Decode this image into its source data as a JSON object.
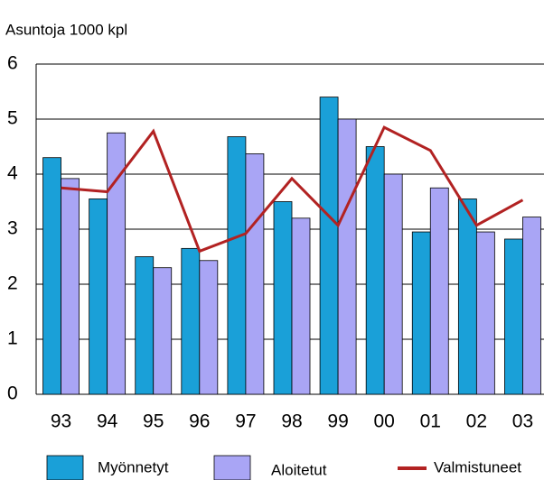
{
  "chart_data": {
    "type": "bar_line",
    "title": "Asuntoja 1000 kpl",
    "categories": [
      "93",
      "94",
      "95",
      "96",
      "97",
      "98",
      "99",
      "00",
      "01",
      "02",
      "03"
    ],
    "series": [
      {
        "name": "Myönnetyt",
        "type": "bar",
        "color": "#1aa0d8",
        "values": [
          4.3,
          3.55,
          2.5,
          2.65,
          4.68,
          3.5,
          5.4,
          4.5,
          2.95,
          3.55,
          2.82
        ]
      },
      {
        "name": "Aloitetut",
        "type": "bar",
        "color": "#a9a5f5",
        "values": [
          3.92,
          4.75,
          2.3,
          2.43,
          4.37,
          3.2,
          5.0,
          4.0,
          3.75,
          2.95,
          3.22
        ]
      },
      {
        "name": "Valmistuneet",
        "type": "line",
        "color": "#b22222",
        "values": [
          3.75,
          3.68,
          4.78,
          2.6,
          2.92,
          3.92,
          3.07,
          4.85,
          4.43,
          3.07,
          3.53
        ]
      }
    ],
    "ylim": [
      0,
      6
    ],
    "yticks": [
      0,
      1,
      2,
      3,
      4,
      5,
      6
    ],
    "grid": true,
    "legend": "bottom"
  }
}
